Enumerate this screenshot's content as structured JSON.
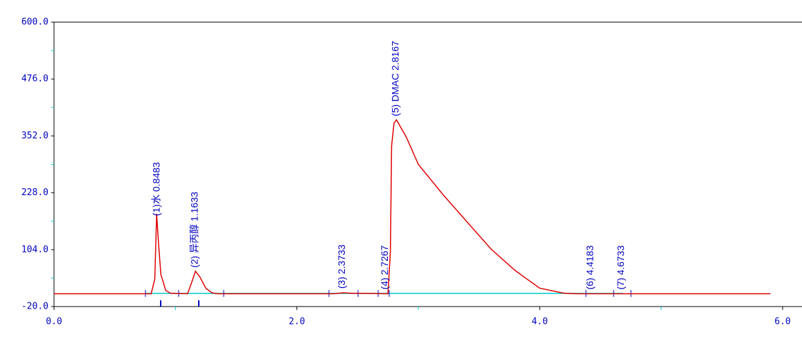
{
  "chart_data": {
    "type": "line",
    "xlim": [
      0,
      6
    ],
    "ylim": [
      -20,
      600
    ],
    "xticks": [
      {
        "value": 0,
        "label": "0.0"
      },
      {
        "value": 2,
        "label": "2.0"
      },
      {
        "value": 4,
        "label": "4.0"
      },
      {
        "value": 6,
        "label": "6.0"
      }
    ],
    "yticks": [
      {
        "value": -20,
        "label": "-20.0"
      },
      {
        "value": 104,
        "label": "104.0"
      },
      {
        "value": 228,
        "label": "228.0"
      },
      {
        "value": 352,
        "label": "352.0"
      },
      {
        "value": 476,
        "label": "476.0"
      },
      {
        "value": 600,
        "label": "600.0"
      }
    ],
    "series": [
      {
        "color": "#e00000",
        "x": [
          0,
          0.8,
          0.83,
          0.845,
          0.86,
          0.88,
          0.92,
          0.96,
          1.1,
          1.13,
          1.165,
          1.2,
          1.25,
          1.3,
          1.35,
          2.3,
          2.38,
          2.45,
          2.75,
          2.77,
          2.78,
          2.8,
          2.82,
          2.9,
          3.0,
          3.2,
          3.4,
          3.6,
          3.8,
          4.0,
          4.2,
          4.3,
          5.9
        ],
        "values": [
          8,
          8,
          40,
          182,
          120,
          50,
          15,
          9,
          8,
          30,
          57,
          45,
          20,
          10,
          8,
          8,
          10,
          9,
          8,
          100,
          330,
          380,
          387,
          350,
          290,
          225,
          165,
          105,
          58,
          20,
          9,
          8,
          8
        ]
      }
    ],
    "annotations": [
      {
        "text": "(1)水 0.8483",
        "x": 0.8483
      },
      {
        "text": "(2) 异丙醇 1.1633",
        "x": 1.1633
      },
      {
        "text": "(3)  2.3733",
        "x": 2.3733
      },
      {
        "text": "(4)  2.7267",
        "x": 2.7267
      },
      {
        "text": "(5) DMAC 2.8167",
        "x": 2.8167
      },
      {
        "text": "(6)  4.4183",
        "x": 4.4183
      },
      {
        "text": "(7)  4.6733",
        "x": 4.6733
      }
    ]
  }
}
